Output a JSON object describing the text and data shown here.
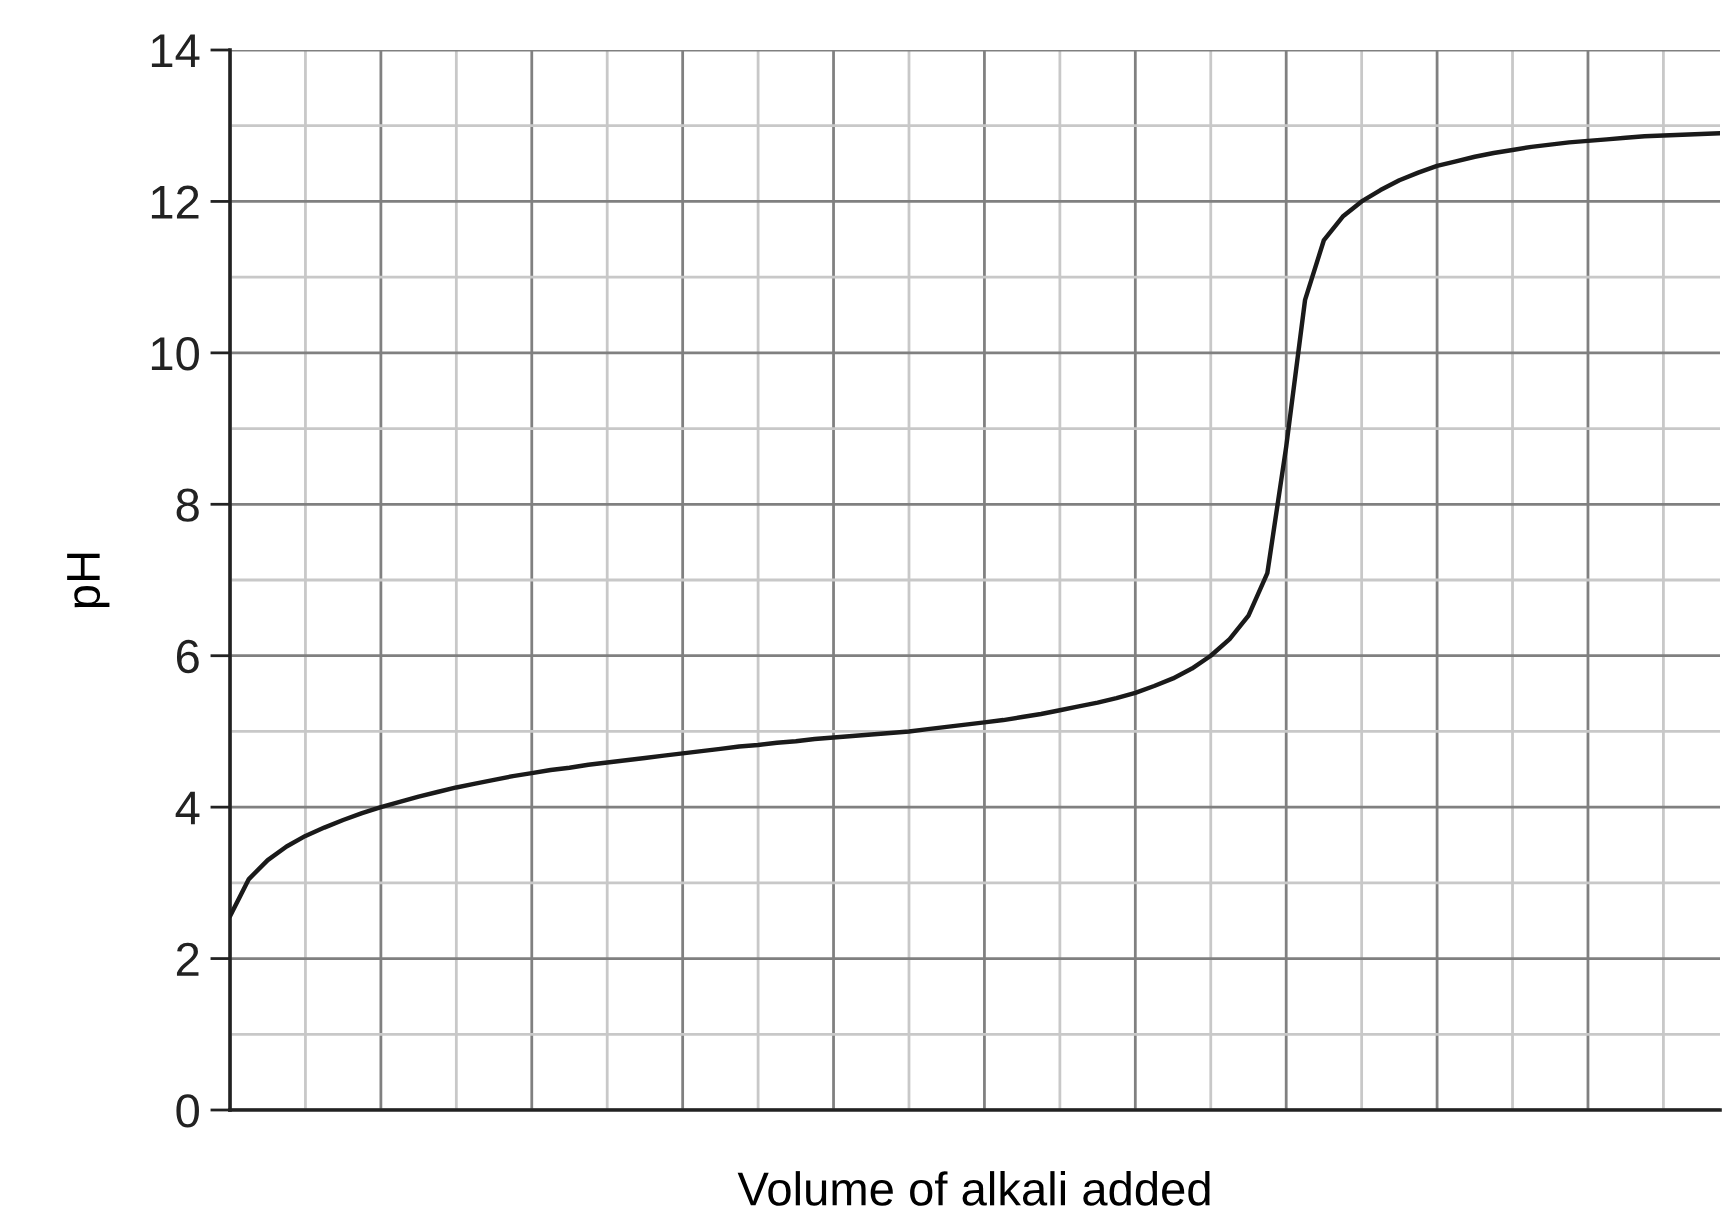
{
  "chart_data": {
    "type": "line",
    "xlabel": "Volume of alkali added",
    "ylabel": "pH",
    "categories": [
      null,
      null,
      null,
      null,
      null,
      null,
      null,
      null,
      null,
      null,
      null,
      null,
      null,
      null,
      null,
      null,
      null,
      null,
      null,
      null,
      null,
      null,
      null,
      null,
      null,
      null,
      null,
      null,
      null,
      null,
      null,
      null,
      null,
      null,
      null,
      null,
      null,
      null,
      null,
      null,
      null,
      null,
      null,
      null,
      null,
      null,
      null,
      null,
      null,
      null,
      null,
      null,
      null,
      null,
      null,
      null,
      null,
      null,
      null,
      null,
      null,
      null,
      null,
      null,
      null,
      null,
      null,
      null,
      null,
      null,
      null,
      null,
      null,
      null,
      null,
      null,
      null,
      null,
      null,
      null
    ],
    "series": [
      {
        "color": "#1a1a1a",
        "values": [
          2.56,
          3.05,
          3.3,
          3.48,
          3.62,
          3.73,
          3.83,
          3.92,
          4.0,
          4.07,
          4.14,
          4.2,
          4.26,
          4.31,
          4.36,
          4.41,
          4.45,
          4.49,
          4.52,
          4.56,
          4.59,
          4.62,
          4.65,
          4.68,
          4.71,
          4.74,
          4.77,
          4.8,
          4.82,
          4.85,
          4.87,
          4.9,
          4.92,
          4.94,
          4.96,
          4.98,
          5.0,
          5.03,
          5.06,
          5.09,
          5.12,
          5.15,
          5.19,
          5.23,
          5.28,
          5.33,
          5.38,
          5.44,
          5.51,
          5.6,
          5.7,
          5.83,
          6.0,
          6.22,
          6.53,
          7.09,
          8.76,
          10.7,
          11.49,
          11.8,
          12.0,
          12.15,
          12.28,
          12.38,
          12.47,
          12.53,
          12.59,
          12.64,
          12.68,
          12.72,
          12.75,
          12.78,
          12.8,
          12.82,
          12.84,
          12.86,
          12.87,
          12.88,
          12.89,
          12.9
        ]
      }
    ],
    "ylim": [
      0,
      14
    ],
    "yticks": [
      0,
      2,
      4,
      6,
      8,
      10,
      12,
      14
    ],
    "grid": true,
    "tick_labels": "y"
  }
}
